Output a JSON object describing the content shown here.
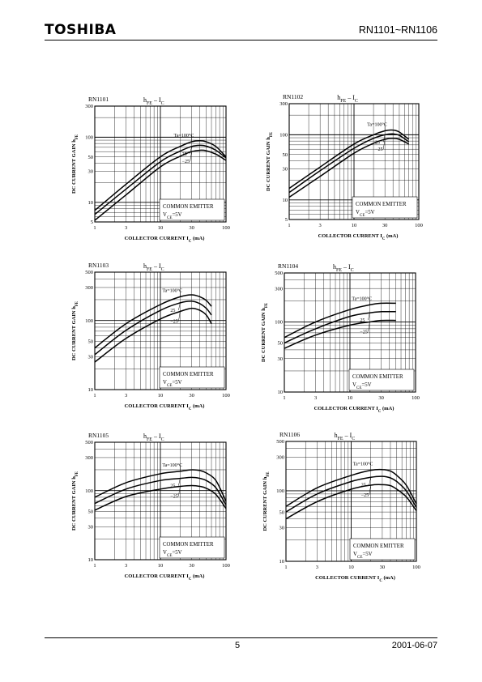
{
  "header": {
    "logo": "TOSHIBA",
    "part_range": "RN1101~RN1106"
  },
  "footer": {
    "page_number": "5",
    "date": "2001-06-07"
  },
  "chart_data": [
    {
      "type": "line",
      "part": "RN1101",
      "title": "hFE – IC",
      "xlabel": "COLLECTOR CURRENT IC (mA)",
      "ylabel": "DC CURRENT GAIN hFE",
      "xscale": "log",
      "yscale": "log",
      "xlim": [
        1,
        100
      ],
      "ylim": [
        5,
        300
      ],
      "xticks": [
        "1",
        "3",
        "10",
        "30",
        "100"
      ],
      "yticks": [
        "5",
        "10",
        "30",
        "50",
        "100",
        "300"
      ],
      "note": [
        "COMMON EMITTER",
        "VCE=5V"
      ],
      "series": [
        {
          "name": "Ta=100°C",
          "x": [
            1,
            3,
            10,
            20,
            30,
            40,
            50,
            70,
            100
          ],
          "y": [
            7.5,
            19,
            50,
            72,
            85,
            88,
            85,
            72,
            50
          ]
        },
        {
          "name": "25",
          "x": [
            1,
            3,
            10,
            20,
            30,
            40,
            50,
            70,
            100
          ],
          "y": [
            6.5,
            16,
            42,
            61,
            72,
            75,
            73,
            63,
            48
          ]
        },
        {
          "name": "−25",
          "x": [
            1,
            3,
            10,
            20,
            30,
            40,
            50,
            70,
            100
          ],
          "y": [
            5.3,
            13,
            35,
            51,
            60,
            63,
            62,
            55,
            44
          ]
        }
      ]
    },
    {
      "type": "line",
      "part": "RN1102",
      "title": "hFE – IC",
      "xlabel": "COLLECTOR CURRENT IC (mA)",
      "ylabel": "DC CURRENT GAIN hFE",
      "xscale": "log",
      "yscale": "log",
      "xlim": [
        1,
        100
      ],
      "ylim": [
        5,
        300
      ],
      "xticks": [
        "1",
        "3",
        "10",
        "30",
        "100"
      ],
      "yticks": [
        "5",
        "10",
        "30",
        "50",
        "100",
        "300"
      ],
      "note": [
        "COMMON EMITTER",
        "VCE=5V"
      ],
      "series": [
        {
          "name": "Ta=100°C",
          "x": [
            1,
            3,
            10,
            20,
            30,
            40,
            50,
            70
          ],
          "y": [
            15,
            32,
            72,
            100,
            115,
            118,
            110,
            85
          ]
        },
        {
          "name": "25",
          "x": [
            1,
            3,
            10,
            20,
            30,
            40,
            50,
            70
          ],
          "y": [
            13,
            28,
            62,
            88,
            100,
            103,
            98,
            78
          ]
        },
        {
          "name": "−25",
          "x": [
            1,
            3,
            10,
            20,
            30,
            40,
            50,
            70
          ],
          "y": [
            11,
            23,
            52,
            74,
            85,
            88,
            85,
            72
          ]
        }
      ]
    },
    {
      "type": "line",
      "part": "RN1103",
      "title": "hFE – IC",
      "xlabel": "COLLECTOR CURRENT IC (mA)",
      "ylabel": "DC CURRENT GAIN hFE",
      "xscale": "log",
      "yscale": "log",
      "xlim": [
        1,
        100
      ],
      "ylim": [
        10,
        500
      ],
      "xticks": [
        "1",
        "3",
        "10",
        "30",
        "100"
      ],
      "yticks": [
        "10",
        "30",
        "50",
        "100",
        "300",
        "500"
      ],
      "note": [
        "COMMON EMITTER",
        "VCE=5V"
      ],
      "series": [
        {
          "name": "Ta=100°C",
          "x": [
            1,
            3,
            10,
            20,
            30,
            40,
            50,
            60
          ],
          "y": [
            40,
            90,
            170,
            220,
            235,
            220,
            195,
            160
          ]
        },
        {
          "name": "25",
          "x": [
            1,
            3,
            10,
            20,
            30,
            40,
            50,
            60
          ],
          "y": [
            32,
            72,
            140,
            180,
            190,
            175,
            150,
            120
          ]
        },
        {
          "name": "−25",
          "x": [
            1,
            3,
            10,
            20,
            30,
            40,
            50,
            60
          ],
          "y": [
            25,
            55,
            105,
            135,
            150,
            140,
            120,
            90
          ]
        }
      ]
    },
    {
      "type": "line",
      "part": "RN1104",
      "title": "hFE – IC",
      "xlabel": "COLLECTOR CURRENT IC (mA)",
      "ylabel": "DC CURRENT GAIN hFE",
      "xscale": "log",
      "yscale": "log",
      "xlim": [
        1,
        100
      ],
      "ylim": [
        10,
        500
      ],
      "xticks": [
        "1",
        "3",
        "10",
        "30",
        "100"
      ],
      "yticks": [
        "10",
        "30",
        "50",
        "100",
        "300",
        "500"
      ],
      "note": [
        "COMMON EMITTER",
        "VCE=5V"
      ],
      "series": [
        {
          "name": "Ta=100°C",
          "x": [
            1,
            3,
            10,
            20,
            30,
            50
          ],
          "y": [
            60,
            100,
            150,
            175,
            185,
            185
          ]
        },
        {
          "name": "25",
          "x": [
            1,
            3,
            10,
            20,
            30,
            50
          ],
          "y": [
            50,
            80,
            120,
            135,
            140,
            140
          ]
        },
        {
          "name": "−25",
          "x": [
            1,
            3,
            10,
            20,
            30,
            50
          ],
          "y": [
            42,
            65,
            90,
            100,
            105,
            105
          ]
        }
      ]
    },
    {
      "type": "line",
      "part": "RN1105",
      "title": "hFE – IC",
      "xlabel": "COLLECTOR CURRENT IC (mA)",
      "ylabel": "DC CURRENT GAIN hFE",
      "xscale": "log",
      "yscale": "log",
      "xlim": [
        1,
        100
      ],
      "ylim": [
        10,
        500
      ],
      "xticks": [
        "1",
        "3",
        "10",
        "30",
        "100"
      ],
      "yticks": [
        "10",
        "30",
        "50",
        "100",
        "300",
        "500"
      ],
      "note": [
        "COMMON EMITTER",
        "VCE=5V"
      ],
      "series": [
        {
          "name": "Ta=100°C",
          "x": [
            1,
            3,
            10,
            20,
            30,
            40,
            50,
            70,
            100
          ],
          "y": [
            80,
            130,
            175,
            190,
            200,
            195,
            180,
            140,
            70
          ]
        },
        {
          "name": "25",
          "x": [
            1,
            3,
            10,
            20,
            30,
            40,
            50,
            70,
            100
          ],
          "y": [
            65,
            105,
            140,
            150,
            155,
            150,
            140,
            110,
            62
          ]
        },
        {
          "name": "−25",
          "x": [
            1,
            3,
            10,
            20,
            30,
            40,
            50,
            70,
            100
          ],
          "y": [
            52,
            82,
            105,
            115,
            118,
            115,
            108,
            88,
            55
          ]
        }
      ]
    },
    {
      "type": "line",
      "part": "RN1106",
      "title": "hFE – IC",
      "xlabel": "COLLECTOR CURRENT IC (mA)",
      "ylabel": "DC CURRENT GAIN hFE",
      "xscale": "log",
      "yscale": "log",
      "xlim": [
        1,
        100
      ],
      "ylim": [
        10,
        500
      ],
      "xticks": [
        "1",
        "3",
        "10",
        "30",
        "100"
      ],
      "yticks": [
        "10",
        "30",
        "50",
        "100",
        "300",
        "500"
      ],
      "note": [
        "COMMON EMITTER",
        "VCE=5V"
      ],
      "series": [
        {
          "name": "Ta=100°C",
          "x": [
            1,
            3,
            10,
            20,
            30,
            40,
            50,
            70,
            100
          ],
          "y": [
            60,
            110,
            165,
            195,
            200,
            190,
            165,
            120,
            65
          ]
        },
        {
          "name": "25",
          "x": [
            1,
            3,
            10,
            20,
            30,
            40,
            50,
            70,
            100
          ],
          "y": [
            50,
            90,
            135,
            155,
            160,
            152,
            135,
            100,
            58
          ]
        },
        {
          "name": "−25",
          "x": [
            1,
            3,
            10,
            20,
            30,
            40,
            50,
            70,
            100
          ],
          "y": [
            40,
            70,
            105,
            120,
            122,
            118,
            105,
            82,
            52
          ]
        }
      ]
    }
  ]
}
